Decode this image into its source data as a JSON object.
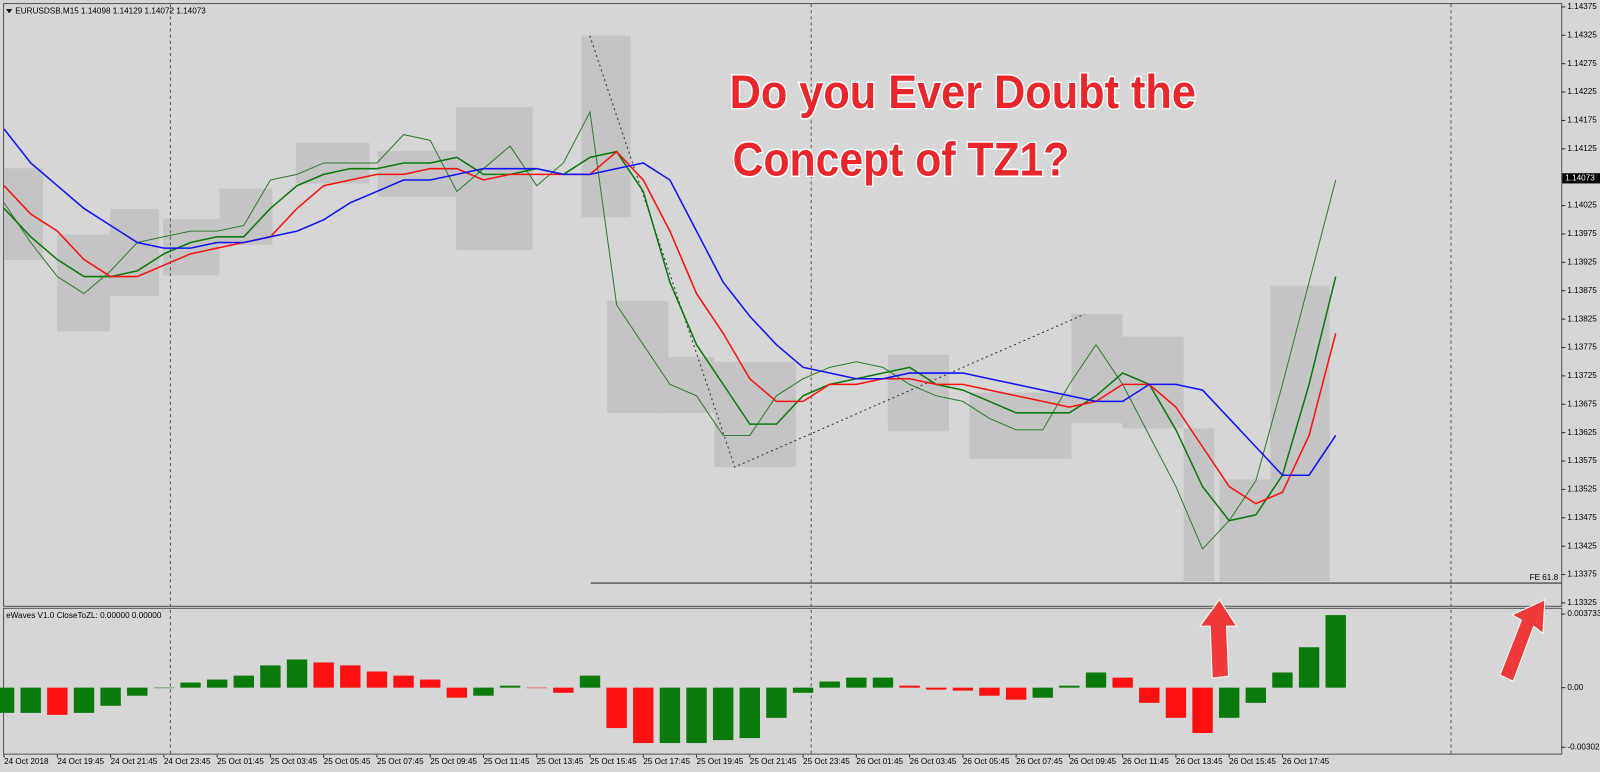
{
  "chart_data": [
    {
      "type": "line",
      "title": "EURUSDSB,M15  1.14098 1.14129 1.14072 1.14073",
      "annotations": [
        "Do you Ever Doubt the",
        "Concept of TZ1?"
      ],
      "categories": [
        "24 Oct 2018",
        null,
        "24 Oct 19:45",
        null,
        "24 Oct 21:45",
        null,
        "24 Oct 23:45",
        null,
        "25 Oct 01:45",
        null,
        "25 Oct 03:45",
        null,
        "25 Oct 05:45",
        null,
        "25 Oct 07:45",
        null,
        "25 Oct 09:45",
        null,
        "25 Oct 11:45",
        null,
        "25 Oct 13:45",
        null,
        "25 Oct 15:45",
        null,
        "25 Oct 17:45",
        null,
        "25 Oct 19:45",
        null,
        "25 Oct 21:45",
        null,
        "25 Oct 23:45",
        null,
        "26 Oct 01:45",
        null,
        "26 Oct 03:45",
        null,
        "26 Oct 05:45",
        null,
        "26 Oct 07:45",
        null,
        "26 Oct 09:45",
        null,
        "26 Oct 11:45",
        null,
        "26 Oct 13:45",
        null,
        "26 Oct 15:45",
        null,
        "26 Oct 17:45",
        null,
        null
      ],
      "series": [
        {
          "color": "#2e7d2e",
          "values": [
            1.1403,
            1.1396,
            1.139,
            1.1387,
            1.1391,
            1.1396,
            1.1397,
            1.1398,
            1.1398,
            1.1399,
            1.1407,
            1.1408,
            1.141,
            1.141,
            1.141,
            1.1415,
            1.1414,
            1.1405,
            1.1409,
            1.1413,
            1.1406,
            1.141,
            1.1419,
            1.1385,
            1.1378,
            1.1371,
            1.1369,
            1.1362,
            1.1362,
            1.1369,
            1.1372,
            1.1374,
            1.1375,
            1.1374,
            1.1371,
            1.1369,
            1.1368,
            1.1365,
            1.1363,
            1.1363,
            1.1371,
            1.1378,
            1.1371,
            1.1362,
            1.1353,
            1.1342,
            1.1347,
            1.1354,
            1.1371,
            1.1389,
            1.1407
          ]
        },
        {
          "color": "#0a7a0a",
          "values": [
            1.1402,
            1.1397,
            1.1393,
            1.139,
            1.139,
            1.1391,
            1.1394,
            1.1396,
            1.1397,
            1.1397,
            1.1402,
            1.1406,
            1.1408,
            1.1409,
            1.1409,
            1.141,
            1.141,
            1.1411,
            1.1408,
            1.1408,
            1.1409,
            1.1408,
            1.1411,
            1.1412,
            1.1405,
            1.1389,
            1.1378,
            1.1371,
            1.1364,
            1.1364,
            1.1369,
            1.1371,
            1.1372,
            1.1373,
            1.1374,
            1.1371,
            1.137,
            1.1368,
            1.1366,
            1.1366,
            1.1366,
            1.1369,
            1.1373,
            1.1371,
            1.1363,
            1.1353,
            1.1347,
            1.1348,
            1.1355,
            1.1371,
            1.139
          ]
        },
        {
          "color": "#ff1010",
          "values": [
            1.1406,
            1.1401,
            1.1398,
            1.1393,
            1.139,
            1.139,
            1.1392,
            1.1394,
            1.1395,
            1.1396,
            1.1397,
            1.1402,
            1.1406,
            1.1407,
            1.1408,
            1.1408,
            1.1409,
            1.1409,
            1.1407,
            1.1408,
            1.1408,
            1.1408,
            1.1408,
            1.1412,
            1.1407,
            1.1398,
            1.1387,
            1.138,
            1.1372,
            1.1368,
            1.1368,
            1.1371,
            1.1371,
            1.1372,
            1.1372,
            1.1371,
            1.1371,
            1.137,
            1.1369,
            1.1368,
            1.1367,
            1.1368,
            1.1371,
            1.1371,
            1.1367,
            1.136,
            1.1353,
            1.135,
            1.1352,
            1.1362,
            1.138
          ]
        },
        {
          "color": "#1010ff",
          "values": [
            1.1416,
            1.141,
            1.1406,
            1.1402,
            1.1399,
            1.1396,
            1.1395,
            1.1395,
            1.1396,
            1.1396,
            1.1397,
            1.1398,
            1.14,
            1.1403,
            1.1405,
            1.1407,
            1.1407,
            1.1408,
            1.1409,
            1.1409,
            1.1409,
            1.1408,
            1.1408,
            1.1409,
            1.141,
            1.1407,
            1.1398,
            1.1389,
            1.1383,
            1.1378,
            1.1374,
            1.1373,
            1.1372,
            1.1372,
            1.1373,
            1.1373,
            1.1373,
            1.1372,
            1.1371,
            1.137,
            1.1369,
            1.1368,
            1.1368,
            1.1371,
            1.1371,
            1.137,
            1.1365,
            1.136,
            1.1355,
            1.1355,
            1.1362
          ]
        }
      ],
      "last_price": 1.14073,
      "fe_line": {
        "label": "FE 61.8",
        "value": 1.1336
      },
      "ylim": [
        1.1332,
        1.1438
      ],
      "yticks": [
        1.14375,
        1.14325,
        1.14275,
        1.14225,
        1.14175,
        1.14125,
        1.14075,
        1.14025,
        1.13975,
        1.13925,
        1.13875,
        1.13825,
        1.13775,
        1.13725,
        1.13675,
        1.13625,
        1.13575,
        1.13525,
        1.13475,
        1.13425,
        1.13375,
        1.13325
      ]
    },
    {
      "type": "bar",
      "title": "eWaves V1.0 CloseToZL: 0.00000 0.00000",
      "up_color": "#0a7a0a",
      "down_color": "#ff1010",
      "values": [
        -0.00128,
        -0.00128,
        -0.00138,
        -0.00128,
        -0.00092,
        -0.00041,
        0,
        0.00026,
        0.00041,
        0.00061,
        0.00113,
        0.00143,
        0.00128,
        0.00113,
        0.00082,
        0.00061,
        0.00041,
        -0.00051,
        -0.00041,
        0.0001,
        0,
        -0.00026,
        0.00061,
        -0.00205,
        -0.00281,
        -0.00281,
        -0.00281,
        -0.00266,
        -0.00256,
        -0.00153,
        -0.00026,
        0.00031,
        0.00051,
        0.00051,
        0.0001,
        -0.0001,
        -0.00015,
        -0.00041,
        -0.00061,
        -0.00051,
        0.0001,
        0.00077,
        0.00051,
        -0.00077,
        -0.00153,
        -0.0023,
        -0.00153,
        -0.00077,
        0.00077,
        0.00205,
        0.00368
      ],
      "ylim": [
        -0.0034,
        0.004
      ],
      "yticks": [
        0.003733,
        {
          "value": 0,
          "label": "0.00"
        },
        -0.003023
      ]
    }
  ]
}
